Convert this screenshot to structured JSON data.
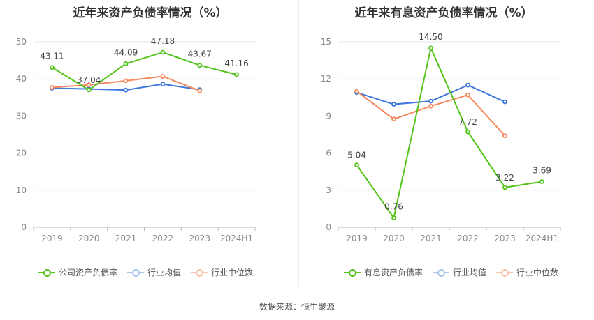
{
  "chart_data": [
    {
      "type": "line",
      "title": "近年来资产负债率情况（%）",
      "categories": [
        "2019",
        "2020",
        "2021",
        "2022",
        "2023",
        "2024H1"
      ],
      "ylim": [
        0,
        50
      ],
      "yticks": [
        0,
        10,
        20,
        30,
        40,
        50
      ],
      "series": [
        {
          "name": "公司资产负债率",
          "color": "#52c41a",
          "values": [
            43.11,
            37.04,
            44.09,
            47.18,
            43.67,
            41.16
          ],
          "labels": [
            "43.11",
            "37.04",
            "44.09",
            "47.18",
            "43.67",
            "41.16"
          ]
        },
        {
          "name": "行业均值",
          "color": "#3f78dc",
          "values": [
            37.5,
            37.3,
            37.0,
            38.6,
            37.1,
            null
          ]
        },
        {
          "name": "行业中位数",
          "color": "#f5895d",
          "values": [
            37.7,
            38.4,
            39.5,
            40.7,
            36.8,
            null
          ]
        }
      ]
    },
    {
      "type": "line",
      "title": "近年来有息资产负债率情况（%）",
      "categories": [
        "2019",
        "2020",
        "2021",
        "2022",
        "2023",
        "2024H1"
      ],
      "ylim": [
        0,
        15
      ],
      "yticks": [
        0,
        3,
        6,
        9,
        12,
        15
      ],
      "series": [
        {
          "name": "有息资产负债率",
          "color": "#52c41a",
          "values": [
            5.04,
            0.76,
            14.5,
            7.72,
            3.22,
            3.69
          ],
          "labels": [
            "5.04",
            "0.76",
            "14.50",
            "7.72",
            "3.22",
            "3.69"
          ]
        },
        {
          "name": "行业均值",
          "color": "#3f78dc",
          "values": [
            10.9,
            9.95,
            10.2,
            11.5,
            10.15,
            null
          ]
        },
        {
          "name": "行业中位数",
          "color": "#f5895d",
          "values": [
            11.0,
            8.75,
            9.8,
            10.7,
            7.4,
            null
          ]
        }
      ]
    }
  ],
  "source": "数据来源：恒生聚源"
}
